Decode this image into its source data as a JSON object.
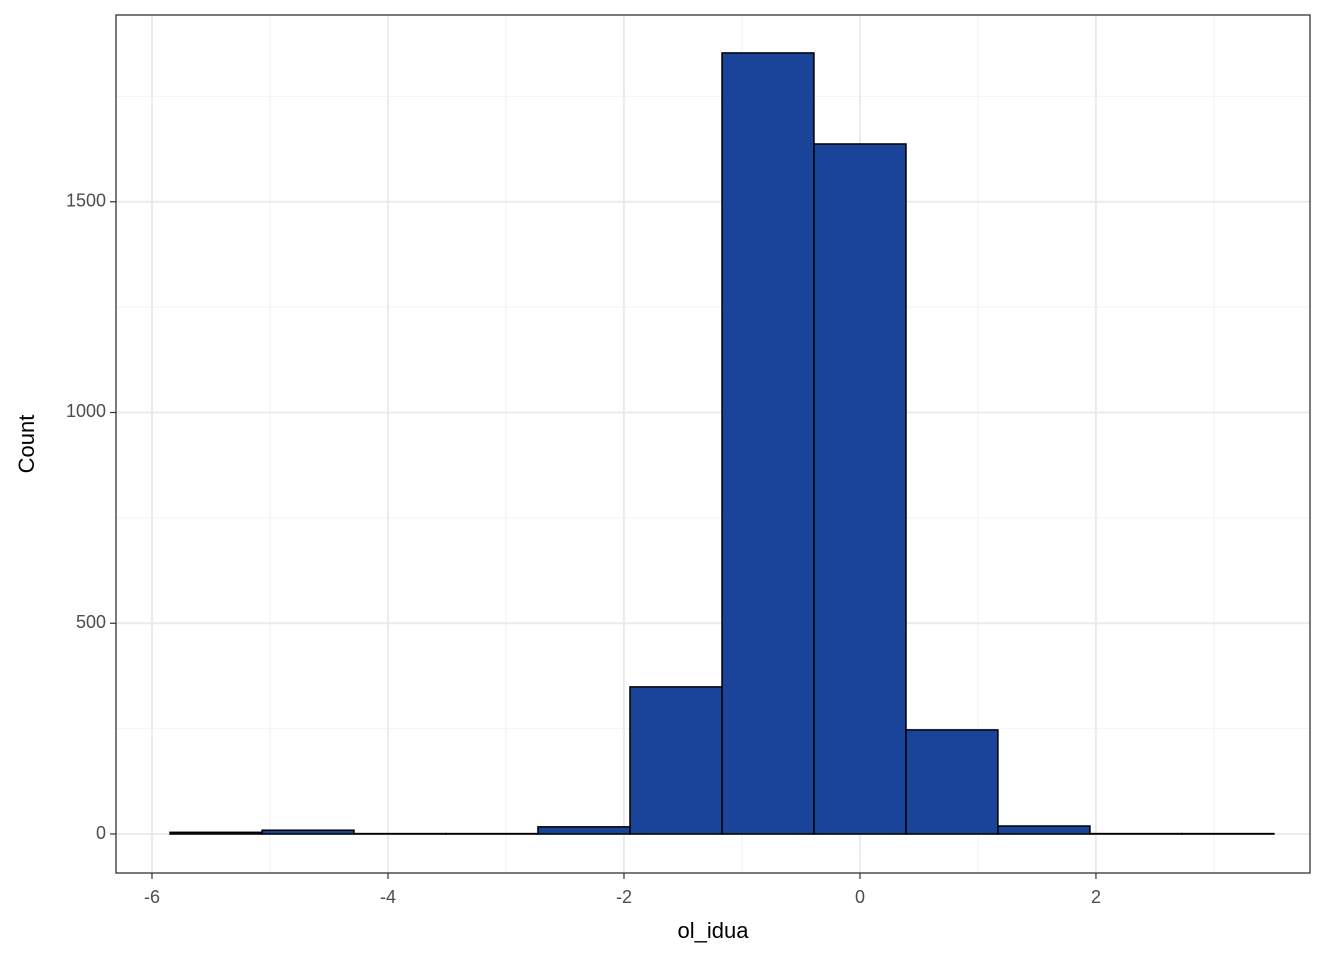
{
  "chart_data": {
    "type": "histogram",
    "x_label": "ol_idua",
    "y_label": "Count",
    "bins": [
      -5.847,
      -5.067,
      -4.288,
      -3.508,
      -2.729,
      -1.949,
      -1.169,
      -0.39,
      0.39,
      1.169,
      1.949,
      2.729,
      3.508
    ],
    "values": [
      4,
      9,
      1,
      1,
      17,
      349,
      1853,
      1637,
      247,
      19,
      1,
      1
    ],
    "color": "#1a4499",
    "xlim": [
      -6.305,
      3.814
    ],
    "xticks": [
      -6,
      -4,
      -2,
      0,
      2
    ],
    "ylim": [
      -92.5,
      1943
    ],
    "yticks": [
      0,
      500,
      1000,
      1500
    ],
    "grid": true
  }
}
